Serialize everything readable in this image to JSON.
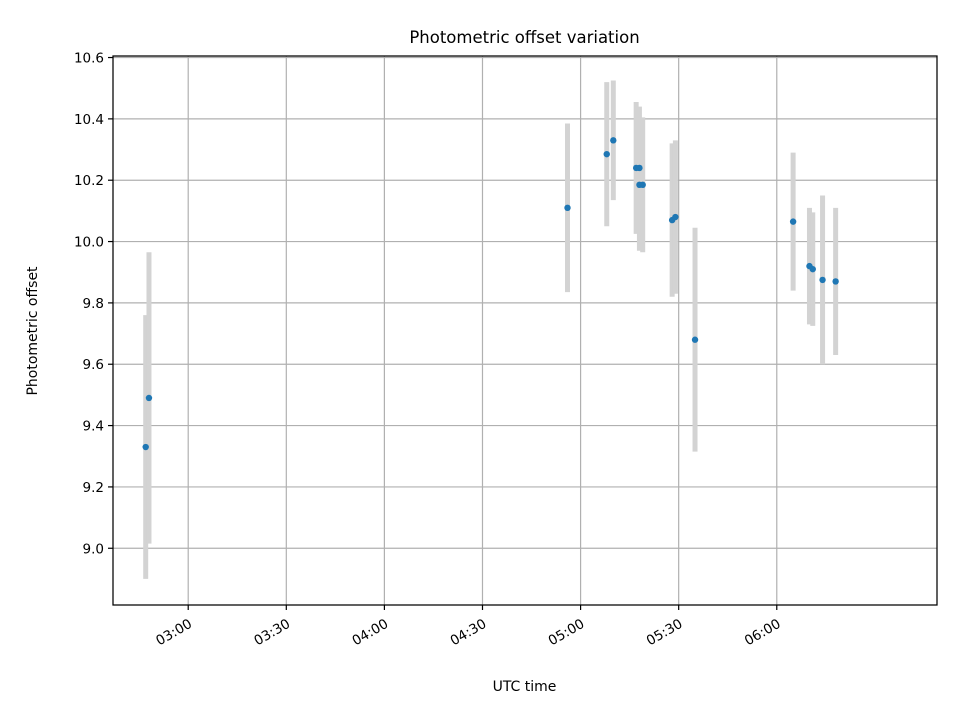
{
  "chart_data": {
    "type": "scatter",
    "title": "Photometric offset variation",
    "xlabel": "UTC time",
    "ylabel": "Photometric offset",
    "x_unit": "UTC time of day (HH:MM)",
    "xlim": [
      "02:37",
      "06:49"
    ],
    "ylim": [
      8.815,
      10.605
    ],
    "x_ticks": [
      "03:00",
      "03:30",
      "04:00",
      "04:30",
      "05:00",
      "05:30",
      "06:00"
    ],
    "y_ticks": [
      9.0,
      9.2,
      9.4,
      9.6,
      9.8,
      10.0,
      10.2,
      10.4,
      10.6
    ],
    "y_tick_labels": [
      "9.0",
      "9.2",
      "9.4",
      "9.6",
      "9.8",
      "10.0",
      "10.2",
      "10.4",
      "10.6"
    ],
    "grid": true,
    "legend": "none",
    "point_color": "#1f77b4",
    "errorbar_color": "#d3d3d3",
    "series": [
      {
        "points": [
          {
            "x": "02:47",
            "y": 9.33,
            "yerr": 0.43
          },
          {
            "x": "02:48",
            "y": 9.49,
            "yerr": 0.475
          },
          {
            "x": "04:56",
            "y": 10.11,
            "yerr": 0.275
          },
          {
            "x": "05:08",
            "y": 10.285,
            "yerr": 0.235
          },
          {
            "x": "05:10",
            "y": 10.33,
            "yerr": 0.195
          },
          {
            "x": "05:17",
            "y": 10.24,
            "yerr": 0.215
          },
          {
            "x": "05:18",
            "y": 10.24,
            "yerr": 0.2
          },
          {
            "x": "05:18",
            "y": 10.185,
            "yerr": 0.215
          },
          {
            "x": "05:19",
            "y": 10.185,
            "yerr": 0.22
          },
          {
            "x": "05:28",
            "y": 10.07,
            "yerr": 0.25
          },
          {
            "x": "05:29",
            "y": 10.08,
            "yerr": 0.25
          },
          {
            "x": "05:35",
            "y": 9.68,
            "yerr": 0.365
          },
          {
            "x": "06:05",
            "y": 10.065,
            "yerr": 0.225
          },
          {
            "x": "06:10",
            "y": 9.92,
            "yerr": 0.19
          },
          {
            "x": "06:11",
            "y": 9.91,
            "yerr": 0.185
          },
          {
            "x": "06:14",
            "y": 9.875,
            "yerr": 0.275
          },
          {
            "x": "06:18",
            "y": 9.87,
            "yerr": 0.24
          }
        ]
      }
    ]
  }
}
